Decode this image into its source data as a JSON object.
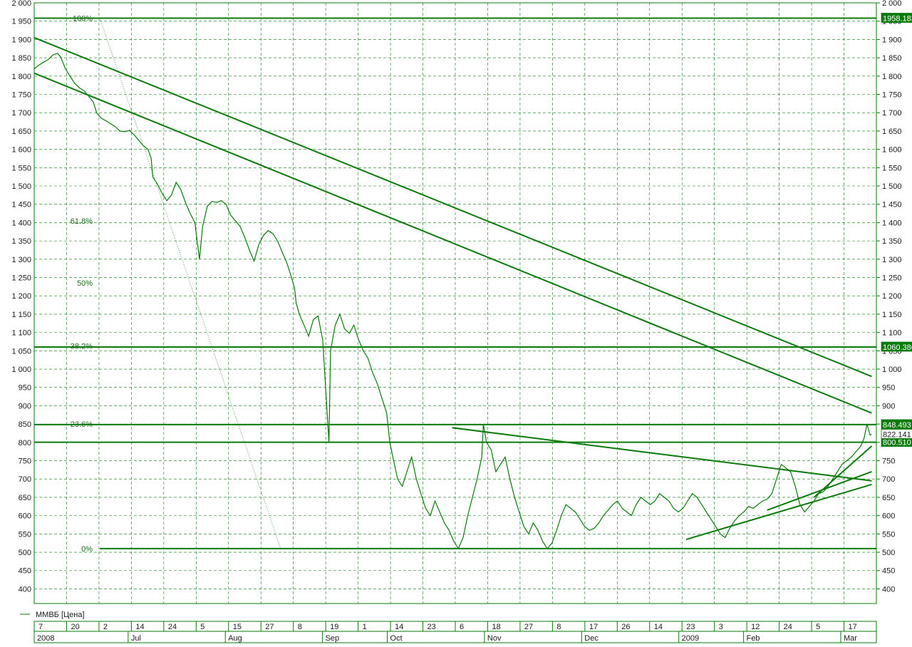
{
  "colors": {
    "line": "#0a7a0a",
    "grid": "#0a7a0a",
    "tag_bg": "#0a7a0a",
    "tag_text": "#ffffff",
    "background": "#ffffff"
  },
  "legend": {
    "label": "ММВБ [Цена]"
  },
  "chart_data": {
    "type": "line",
    "title": "",
    "xlabel": "",
    "ylabel": "",
    "ylim": [
      360,
      2000
    ],
    "y_ticks": [
      "2 000",
      "1 950",
      "1 900",
      "1 850",
      "1 800",
      "1 750",
      "1 700",
      "1 650",
      "1 600",
      "1 550",
      "1 500",
      "1 450",
      "1 400",
      "1 350",
      "1 300",
      "1 250",
      "1 200",
      "1 150",
      "1 100",
      "1 050",
      "1 000",
      "950",
      "900",
      "850",
      "800",
      "750",
      "700",
      "650",
      "600",
      "550",
      "500",
      "450",
      "400"
    ],
    "x_day_labels": [
      "7",
      "20",
      "2",
      "14",
      "24",
      "5",
      "15",
      "27",
      "8",
      "19",
      "1",
      "14",
      "23",
      "6",
      "18",
      "27",
      "8",
      "17",
      "26",
      "14",
      "23",
      "3",
      "12",
      "24",
      "5",
      "17"
    ],
    "x_month_labels": [
      "2008",
      "Jul",
      "Aug",
      "Sep",
      "Oct",
      "Nov",
      "Dec",
      "2009",
      "Feb",
      "Mar"
    ],
    "fibonacci_levels": [
      {
        "label": "100%",
        "value": 1958.18
      },
      {
        "label": "61.8%",
        "value": 1405
      },
      {
        "label": "50%",
        "value": 1235
      },
      {
        "label": "38.2%",
        "value": 1063
      },
      {
        "label": "23.6%",
        "value": 850
      },
      {
        "label": "0%",
        "value": 510
      }
    ],
    "horizontal_lines": [
      {
        "value": 1958.183,
        "tag": "1958.183"
      },
      {
        "value": 1060.386,
        "tag": "1060.386"
      },
      {
        "value": 848.493,
        "tag": "848.493"
      },
      {
        "value": 800.51,
        "tag": "800.510"
      },
      {
        "value": 510,
        "tag": ""
      }
    ],
    "last_value_tag": {
      "value": 822.14,
      "tag": "822.141"
    },
    "series": [
      {
        "name": "ММВБ [Цена]",
        "points": [
          [
            0,
            1820
          ],
          [
            3,
            1830
          ],
          [
            6,
            1838
          ],
          [
            9,
            1845
          ],
          [
            12,
            1858
          ],
          [
            15,
            1862
          ],
          [
            17,
            1852
          ],
          [
            20,
            1820
          ],
          [
            23,
            1800
          ],
          [
            26,
            1780
          ],
          [
            29,
            1768
          ],
          [
            32,
            1760
          ],
          [
            35,
            1745
          ],
          [
            38,
            1728
          ],
          [
            40,
            1700
          ],
          [
            43,
            1685
          ],
          [
            46,
            1678
          ],
          [
            49,
            1670
          ],
          [
            52,
            1662
          ],
          [
            55,
            1650
          ],
          [
            58,
            1648
          ],
          [
            61,
            1652
          ],
          [
            64,
            1640
          ],
          [
            67,
            1625
          ],
          [
            70,
            1610
          ],
          [
            73,
            1600
          ],
          [
            75,
            1575
          ],
          [
            76,
            1525
          ],
          [
            79,
            1505
          ],
          [
            82,
            1480
          ],
          [
            85,
            1460
          ],
          [
            88,
            1475
          ],
          [
            91,
            1510
          ],
          [
            94,
            1490
          ],
          [
            97,
            1455
          ],
          [
            100,
            1425
          ],
          [
            103,
            1400
          ],
          [
            106,
            1300
          ],
          [
            108,
            1390
          ],
          [
            111,
            1445
          ],
          [
            114,
            1458
          ],
          [
            117,
            1455
          ],
          [
            120,
            1460
          ],
          [
            123,
            1450
          ],
          [
            126,
            1420
          ],
          [
            129,
            1405
          ],
          [
            132,
            1390
          ],
          [
            135,
            1360
          ],
          [
            138,
            1325
          ],
          [
            141,
            1295
          ],
          [
            144,
            1340
          ],
          [
            147,
            1365
          ],
          [
            150,
            1378
          ],
          [
            153,
            1370
          ],
          [
            156,
            1350
          ],
          [
            159,
            1320
          ],
          [
            162,
            1290
          ],
          [
            165,
            1250
          ],
          [
            167,
            1220
          ],
          [
            168,
            1180
          ],
          [
            170,
            1150
          ],
          [
            173,
            1120
          ],
          [
            176,
            1090
          ],
          [
            179,
            1135
          ],
          [
            182,
            1145
          ],
          [
            185,
            1080
          ],
          [
            188,
            870
          ],
          [
            189,
            800
          ],
          [
            190,
            1050
          ],
          [
            193,
            1120
          ],
          [
            196,
            1150
          ],
          [
            199,
            1110
          ],
          [
            202,
            1098
          ],
          [
            205,
            1120
          ],
          [
            208,
            1080
          ],
          [
            211,
            1050
          ],
          [
            214,
            1030
          ],
          [
            217,
            990
          ],
          [
            220,
            960
          ],
          [
            223,
            920
          ],
          [
            226,
            880
          ],
          [
            228,
            800
          ],
          [
            230,
            760
          ],
          [
            233,
            700
          ],
          [
            236,
            680
          ],
          [
            239,
            720
          ],
          [
            242,
            760
          ],
          [
            245,
            700
          ],
          [
            248,
            660
          ],
          [
            251,
            620
          ],
          [
            254,
            600
          ],
          [
            257,
            640
          ],
          [
            260,
            610
          ],
          [
            263,
            580
          ],
          [
            266,
            560
          ],
          [
            269,
            530
          ],
          [
            272,
            510
          ],
          [
            275,
            540
          ],
          [
            278,
            600
          ],
          [
            281,
            650
          ],
          [
            284,
            700
          ],
          [
            287,
            760
          ],
          [
            288,
            850
          ],
          [
            290,
            800
          ],
          [
            293,
            780
          ],
          [
            296,
            720
          ],
          [
            299,
            740
          ],
          [
            302,
            760
          ],
          [
            305,
            700
          ],
          [
            308,
            650
          ],
          [
            311,
            610
          ],
          [
            314,
            570
          ],
          [
            317,
            550
          ],
          [
            320,
            580
          ],
          [
            323,
            560
          ],
          [
            326,
            530
          ],
          [
            329,
            510
          ],
          [
            332,
            525
          ],
          [
            335,
            560
          ],
          [
            338,
            600
          ],
          [
            341,
            630
          ],
          [
            344,
            620
          ],
          [
            347,
            610
          ],
          [
            350,
            590
          ],
          [
            353,
            570
          ],
          [
            356,
            560
          ],
          [
            359,
            565
          ],
          [
            362,
            580
          ],
          [
            365,
            600
          ],
          [
            368,
            615
          ],
          [
            371,
            630
          ],
          [
            374,
            640
          ],
          [
            377,
            620
          ],
          [
            380,
            610
          ],
          [
            383,
            600
          ],
          [
            386,
            630
          ],
          [
            389,
            650
          ],
          [
            392,
            640
          ],
          [
            395,
            630
          ],
          [
            398,
            640
          ],
          [
            401,
            660
          ],
          [
            404,
            650
          ],
          [
            407,
            640
          ],
          [
            410,
            620
          ],
          [
            413,
            610
          ],
          [
            416,
            620
          ],
          [
            419,
            640
          ],
          [
            422,
            660
          ],
          [
            425,
            650
          ],
          [
            428,
            630
          ],
          [
            431,
            610
          ],
          [
            434,
            590
          ],
          [
            437,
            570
          ],
          [
            440,
            550
          ],
          [
            443,
            540
          ],
          [
            446,
            565
          ],
          [
            449,
            585
          ],
          [
            452,
            600
          ],
          [
            455,
            610
          ],
          [
            458,
            625
          ],
          [
            461,
            620
          ],
          [
            464,
            630
          ],
          [
            467,
            640
          ],
          [
            470,
            645
          ],
          [
            473,
            660
          ],
          [
            476,
            700
          ],
          [
            479,
            740
          ],
          [
            482,
            730
          ],
          [
            485,
            720
          ],
          [
            488,
            680
          ],
          [
            491,
            630
          ],
          [
            494,
            610
          ],
          [
            497,
            625
          ],
          [
            500,
            640
          ],
          [
            503,
            660
          ],
          [
            506,
            665
          ],
          [
            509,
            680
          ],
          [
            512,
            700
          ],
          [
            515,
            720
          ],
          [
            518,
            740
          ],
          [
            521,
            750
          ],
          [
            524,
            760
          ],
          [
            527,
            775
          ],
          [
            530,
            790
          ],
          [
            532,
            810
          ],
          [
            534,
            850
          ],
          [
            536,
            820
          ],
          [
            537,
            822
          ]
        ]
      }
    ],
    "trend_lines": [
      {
        "from": [
          0,
          1905
        ],
        "to": [
          537,
          980
        ]
      },
      {
        "from": [
          0,
          1808
        ],
        "to": [
          537,
          880
        ]
      },
      {
        "from": [
          268,
          840
        ],
        "to": [
          537,
          695
        ]
      },
      {
        "from": [
          418,
          535
        ],
        "to": [
          537,
          685
        ]
      },
      {
        "from": [
          470,
          615
        ],
        "to": [
          537,
          720
        ]
      },
      {
        "from": [
          500,
          650
        ],
        "to": [
          537,
          790
        ]
      }
    ],
    "fib_diagonal": {
      "from": [
        42,
        1960
      ],
      "to": [
        158,
        510
      ]
    },
    "x_range": [
      0,
      540
    ]
  }
}
